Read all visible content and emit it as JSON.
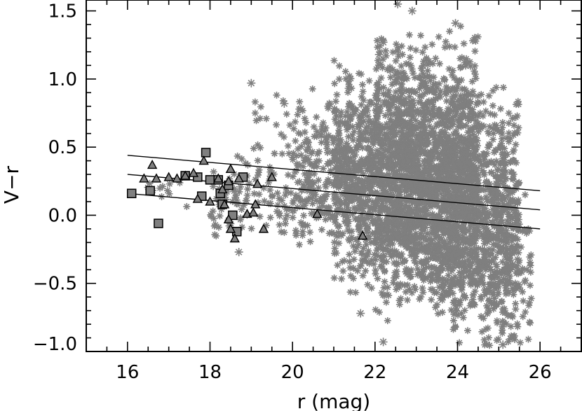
{
  "chart_data": {
    "type": "scatter",
    "title": "",
    "xlabel": "r (mag)",
    "ylabel": "V−r",
    "xlim": [
      15.0,
      27.0
    ],
    "ylim": [
      -1.0,
      1.58
    ],
    "xticks": [
      16,
      18,
      20,
      22,
      24,
      26
    ],
    "yticks": [
      -1.0,
      -0.5,
      0.0,
      0.5,
      1.0,
      1.5
    ],
    "xtick_labels": [
      "16",
      "18",
      "20",
      "22",
      "24",
      "26"
    ],
    "ytick_labels": [
      "−1.0",
      "−0.5",
      "0.0",
      "0.5",
      "1.0",
      "1.5"
    ],
    "grid": false,
    "legend": "none",
    "colors": {
      "field": "#7f7f7f",
      "triangle": "#808080",
      "square": "#808080",
      "line": "#000000",
      "axis": "#000000"
    },
    "field_density": [
      {
        "x_range": [
          16.2,
          18.0
        ],
        "y_range": [
          0.05,
          0.35
        ],
        "count": 12
      },
      {
        "x_range": [
          18.0,
          20.0
        ],
        "y_range": [
          -0.2,
          0.5
        ],
        "count": 110
      },
      {
        "x_range": [
          19.0,
          21.0
        ],
        "y_range": [
          0.3,
          1.0
        ],
        "count": 40
      },
      {
        "x_range": [
          20.0,
          22.0
        ],
        "y_range": [
          -0.3,
          0.8
        ],
        "count": 320
      },
      {
        "x_range": [
          21.0,
          23.5
        ],
        "y_range": [
          -0.6,
          1.2
        ],
        "count": 900
      },
      {
        "x_range": [
          22.0,
          24.5
        ],
        "y_range": [
          -0.8,
          1.4
        ],
        "count": 1500
      },
      {
        "x_range": [
          23.5,
          25.5
        ],
        "y_range": [
          -1.0,
          1.0
        ],
        "count": 900
      },
      {
        "x_range": [
          24.5,
          25.8
        ],
        "y_range": [
          -1.0,
          0.3
        ],
        "count": 150
      }
    ],
    "field_outliers": [
      {
        "x": 22.55,
        "y": 1.55
      },
      {
        "x": 22.9,
        "y": 1.5
      },
      {
        "x": 23.95,
        "y": 1.41
      },
      {
        "x": 22.2,
        "y": 1.27
      },
      {
        "x": 22.1,
        "y": 1.18
      },
      {
        "x": 19.0,
        "y": 0.97
      },
      {
        "x": 19.8,
        "y": 0.82
      },
      {
        "x": 18.7,
        "y": -0.27
      },
      {
        "x": 21.65,
        "y": -0.72
      },
      {
        "x": 22.2,
        "y": -0.93
      },
      {
        "x": 25.1,
        "y": -0.95
      },
      {
        "x": 20.2,
        "y": 0.78
      }
    ],
    "triangles": [
      {
        "x": 16.4,
        "y": 0.27
      },
      {
        "x": 16.6,
        "y": 0.37
      },
      {
        "x": 16.7,
        "y": 0.27
      },
      {
        "x": 17.0,
        "y": 0.28
      },
      {
        "x": 17.2,
        "y": 0.27
      },
      {
        "x": 17.4,
        "y": 0.29
      },
      {
        "x": 17.6,
        "y": 0.31
      },
      {
        "x": 17.85,
        "y": 0.4
      },
      {
        "x": 17.7,
        "y": 0.12
      },
      {
        "x": 18.0,
        "y": 0.1
      },
      {
        "x": 18.2,
        "y": 0.27
      },
      {
        "x": 18.3,
        "y": 0.19
      },
      {
        "x": 18.45,
        "y": 0.25
      },
      {
        "x": 18.5,
        "y": 0.34
      },
      {
        "x": 18.35,
        "y": 0.08
      },
      {
        "x": 18.45,
        "y": -0.03
      },
      {
        "x": 18.5,
        "y": -0.1
      },
      {
        "x": 18.6,
        "y": -0.17
      },
      {
        "x": 18.7,
        "y": 0.27
      },
      {
        "x": 18.9,
        "y": 0.01
      },
      {
        "x": 19.05,
        "y": 0.02
      },
      {
        "x": 19.1,
        "y": 0.08
      },
      {
        "x": 19.15,
        "y": 0.23
      },
      {
        "x": 19.3,
        "y": -0.1
      },
      {
        "x": 19.5,
        "y": 0.28
      },
      {
        "x": 20.6,
        "y": 0.01
      },
      {
        "x": 21.7,
        "y": -0.15
      }
    ],
    "squares": [
      {
        "x": 16.1,
        "y": 0.16
      },
      {
        "x": 16.55,
        "y": 0.18
      },
      {
        "x": 16.75,
        "y": -0.06
      },
      {
        "x": 17.4,
        "y": 0.29
      },
      {
        "x": 17.7,
        "y": 0.28
      },
      {
        "x": 17.9,
        "y": 0.46
      },
      {
        "x": 17.8,
        "y": 0.14
      },
      {
        "x": 18.0,
        "y": 0.26
      },
      {
        "x": 18.2,
        "y": 0.26
      },
      {
        "x": 18.25,
        "y": 0.16
      },
      {
        "x": 18.3,
        "y": 0.08
      },
      {
        "x": 18.45,
        "y": 0.22
      },
      {
        "x": 18.55,
        "y": 0.0
      },
      {
        "x": 18.65,
        "y": -0.12
      },
      {
        "x": 18.8,
        "y": 0.28
      }
    ],
    "lines": [
      {
        "x": [
          16.0,
          26.0
        ],
        "y": [
          0.44,
          0.18
        ]
      },
      {
        "x": [
          16.0,
          26.0
        ],
        "y": [
          0.3,
          0.04
        ]
      },
      {
        "x": [
          16.0,
          26.0
        ],
        "y": [
          0.16,
          -0.1
        ]
      }
    ]
  }
}
